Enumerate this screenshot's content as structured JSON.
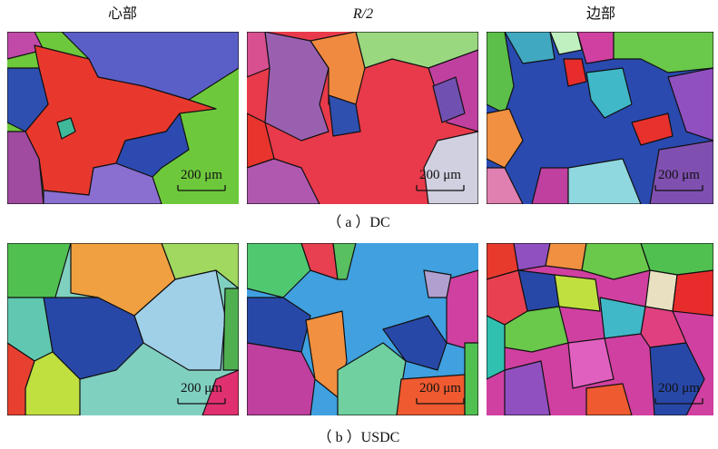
{
  "headers": [
    "心部",
    "R/2",
    "边部"
  ],
  "rows": [
    {
      "caption": "（ a ）DC",
      "scale_bars": [
        "200 μm",
        "200 μm",
        "200 μm"
      ]
    },
    {
      "caption": "（ b ）USDC",
      "scale_bars": [
        "200 μm",
        "200 μm",
        "200 μm"
      ]
    }
  ]
}
